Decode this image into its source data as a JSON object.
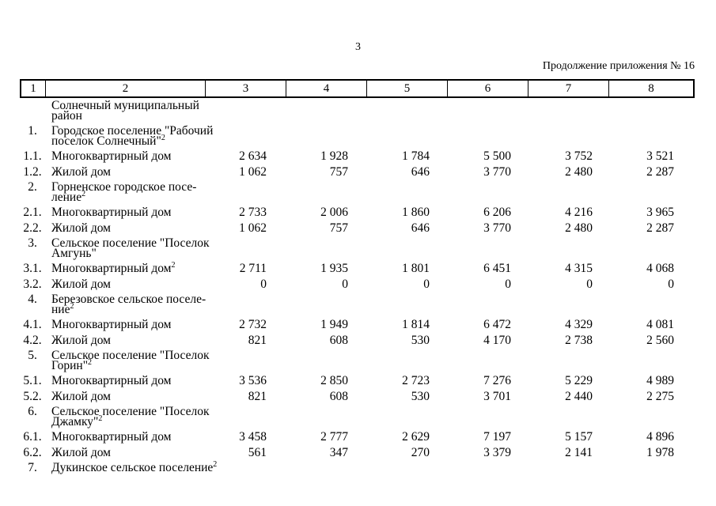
{
  "page": {
    "number": "3",
    "continuation_note": "Продолжение приложения № 16"
  },
  "table": {
    "column_numbers": [
      "1",
      "2",
      "3",
      "4",
      "5",
      "6",
      "7",
      "8"
    ],
    "rows": [
      {
        "num": "",
        "name": "Солнечный муниципальный\nрайон",
        "sup": "",
        "values": [
          "",
          "",
          "",
          "",
          "",
          ""
        ]
      },
      {
        "num": "1.",
        "name": "Городское поселение \"Рабочий\nпоселок Солнечный\"",
        "sup": "2",
        "values": [
          "",
          "",
          "",
          "",
          "",
          ""
        ]
      },
      {
        "num": "1.1.",
        "name": "Многоквартирный дом",
        "sup": "",
        "values": [
          "2 634",
          "1 928",
          "1 784",
          "5 500",
          "3 752",
          "3 521"
        ]
      },
      {
        "num": "1.2.",
        "name": "Жилой дом",
        "sup": "",
        "values": [
          "1 062",
          "757",
          "646",
          "3 770",
          "2 480",
          "2 287"
        ]
      },
      {
        "num": "2.",
        "name": "Горненское городское посе-\nление",
        "sup": "2",
        "values": [
          "",
          "",
          "",
          "",
          "",
          ""
        ]
      },
      {
        "num": "2.1.",
        "name": "Многоквартирный дом",
        "sup": "",
        "values": [
          "2 733",
          "2 006",
          "1 860",
          "6 206",
          "4 216",
          "3 965"
        ]
      },
      {
        "num": "2.2.",
        "name": "Жилой дом",
        "sup": "",
        "values": [
          "1 062",
          "757",
          "646",
          "3 770",
          "2 480",
          "2 287"
        ]
      },
      {
        "num": "3.",
        "name": "Сельское поселение \"Поселок\nАмгунь\"",
        "sup": "",
        "values": [
          "",
          "",
          "",
          "",
          "",
          ""
        ]
      },
      {
        "num": "3.1.",
        "name": "Многоквартирный дом",
        "sup": "2",
        "values": [
          "2 711",
          "1 935",
          "1 801",
          "6 451",
          "4 315",
          "4 068"
        ]
      },
      {
        "num": "3.2.",
        "name": "Жилой дом",
        "sup": "",
        "values": [
          "0",
          "0",
          "0",
          "0",
          "0",
          "0"
        ]
      },
      {
        "num": "4.",
        "name": "Березовское сельское поселе-\nние",
        "sup": "2",
        "values": [
          "",
          "",
          "",
          "",
          "",
          ""
        ]
      },
      {
        "num": "4.1.",
        "name": "Многоквартирный дом",
        "sup": "",
        "values": [
          "2 732",
          "1 949",
          "1 814",
          "6 472",
          "4 329",
          "4 081"
        ]
      },
      {
        "num": "4.2.",
        "name": "Жилой дом",
        "sup": "",
        "values": [
          "821",
          "608",
          "530",
          "4 170",
          "2 738",
          "2 560"
        ]
      },
      {
        "num": "5.",
        "name": "Сельское поселение \"Поселок\nГорин\"",
        "sup": "2",
        "values": [
          "",
          "",
          "",
          "",
          "",
          ""
        ]
      },
      {
        "num": "5.1.",
        "name": "Многоквартирный дом",
        "sup": "",
        "values": [
          "3 536",
          "2 850",
          "2 723",
          "7 276",
          "5 229",
          "4 989"
        ]
      },
      {
        "num": "5.2.",
        "name": "Жилой дом",
        "sup": "",
        "values": [
          "821",
          "608",
          "530",
          "3 701",
          "2 440",
          "2 275"
        ]
      },
      {
        "num": "6.",
        "name": "Сельское поселение \"Поселок\nДжамку\"",
        "sup": "2",
        "values": [
          "",
          "",
          "",
          "",
          "",
          ""
        ]
      },
      {
        "num": "6.1.",
        "name": "Многоквартирный дом",
        "sup": "",
        "values": [
          "3 458",
          "2 777",
          "2 629",
          "7 197",
          "5 157",
          "4 896"
        ]
      },
      {
        "num": "6.2.",
        "name": "Жилой дом",
        "sup": "",
        "values": [
          "561",
          "347",
          "270",
          "3 379",
          "2 141",
          "1 978"
        ]
      },
      {
        "num": "7.",
        "name": "Дукинское сельское поселение",
        "sup": "2",
        "values": [
          "",
          "",
          "",
          "",
          "",
          ""
        ]
      }
    ]
  }
}
